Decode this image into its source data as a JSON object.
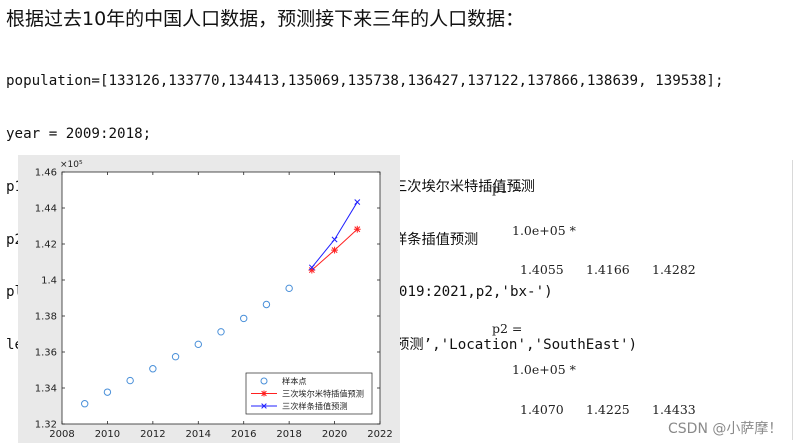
{
  "heading": "根据过去10年的中国人口数据，预测接下来三年的人口数据：",
  "code_lines": [
    "population=[133126,133770,134413,135069,135738,136427,137122,137866,138639, 139538];",
    "year = 2009:2018;",
    "p1 = pchip(year, population, 2019:2021)  %分段三次埃尔米特插值预测",
    "p2 = spline(year, population, 2019:2021) %三次样条插值预测",
    "plot(year, population,'o',2019:2021,p1,'r*-',2019:2021,p2,'bx-')",
    "legend(‘样本点’,‘三次埃尔米特插值预测’,‘三次样条插值预测’,'Location','SouthEast')"
  ],
  "chart_data": {
    "type": "line",
    "exponent_label": "×10⁵",
    "xlim": [
      2008,
      2022
    ],
    "ylim": [
      1.32,
      1.46
    ],
    "x_ticks": [
      2008,
      2010,
      2012,
      2014,
      2016,
      2018,
      2020,
      2022
    ],
    "x_tick_labels": [
      "2008",
      "2010",
      "2012",
      "2014",
      "2016",
      "2018",
      "2020",
      "2022"
    ],
    "y_ticks": [
      1.32,
      1.34,
      1.36,
      1.38,
      1.4,
      1.42,
      1.44,
      1.46
    ],
    "y_tick_labels": [
      "1.32",
      "1.34",
      "1.36",
      "1.38",
      "1.4",
      "1.42",
      "1.44",
      "1.46"
    ],
    "grid": false,
    "legend_position": "bottom-right",
    "series": [
      {
        "name": "样本点",
        "style": "circle-markers",
        "color": "#4a90d9",
        "x": [
          2009,
          2010,
          2011,
          2012,
          2013,
          2014,
          2015,
          2016,
          2017,
          2018
        ],
        "y": [
          1.33126,
          1.3377,
          1.34413,
          1.35069,
          1.35738,
          1.36427,
          1.37122,
          1.37866,
          1.38639,
          1.39538
        ]
      },
      {
        "name": "三次埃尔米特插值预测",
        "style": "line-star",
        "color": "#ff2020",
        "x": [
          2019,
          2020,
          2021
        ],
        "y": [
          1.4055,
          1.4166,
          1.4282
        ]
      },
      {
        "name": "三次样条插值预测",
        "style": "line-x",
        "color": "#2020ff",
        "x": [
          2019,
          2020,
          2021
        ],
        "y": [
          1.407,
          1.4225,
          1.4433
        ]
      }
    ]
  },
  "console": {
    "p1_label": "p1 =",
    "p1_scale": "1.0e+05 *",
    "p1_values": [
      "1.4055",
      "1.4166",
      "1.4282"
    ],
    "p2_label": "p2 =",
    "p2_scale": "1.0e+05 *",
    "p2_values": [
      "1.4070",
      "1.4225",
      "1.4433"
    ]
  },
  "watermark": "CSDN @小萨摩！"
}
